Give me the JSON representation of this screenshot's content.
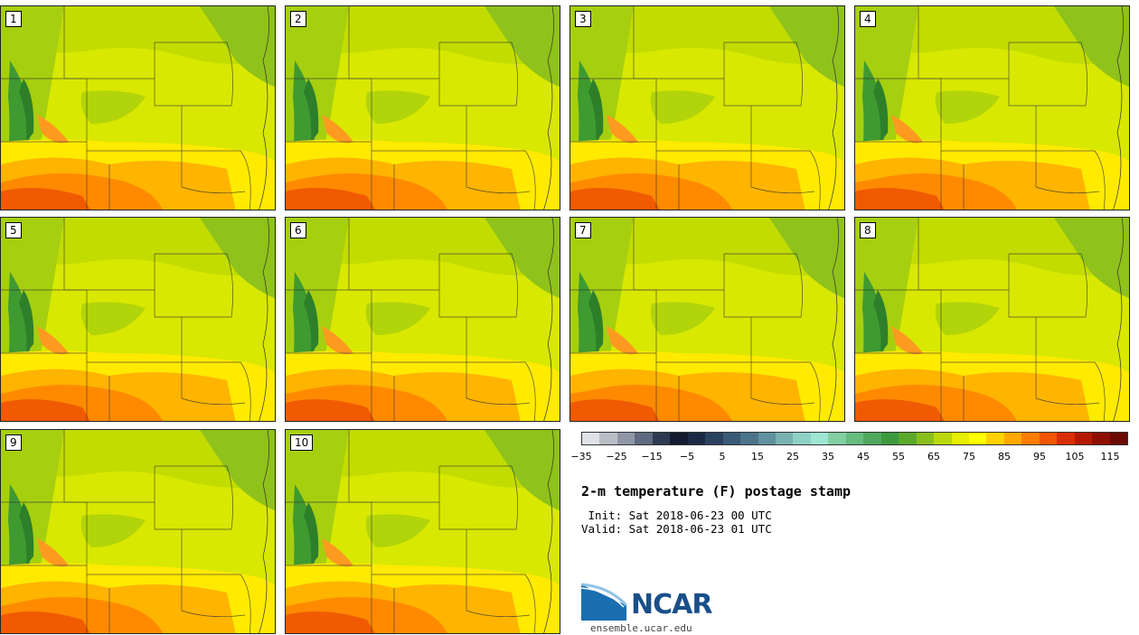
{
  "panels": [
    {
      "label": "1"
    },
    {
      "label": "2"
    },
    {
      "label": "3"
    },
    {
      "label": "4"
    },
    {
      "label": "5"
    },
    {
      "label": "6"
    },
    {
      "label": "7"
    },
    {
      "label": "8"
    },
    {
      "label": "9"
    },
    {
      "label": "10"
    }
  ],
  "colorbar": {
    "colors": [
      "#dfe2e6",
      "#b9bdc5",
      "#8f97a6",
      "#5f6a80",
      "#2e3a52",
      "#121b30",
      "#1b2a42",
      "#2a4260",
      "#3a5a78",
      "#4b7389",
      "#5f929e",
      "#79b1b2",
      "#8ed1c4",
      "#9fe6d2",
      "#82cfa2",
      "#66bb7f",
      "#4fa85e",
      "#3d9a3c",
      "#5aa92a",
      "#88bf1c",
      "#b9d90c",
      "#e6ef00",
      "#ffff00",
      "#ffd000",
      "#ffa800",
      "#ff7d00",
      "#f25500",
      "#d92e00",
      "#b51a00",
      "#8f1000",
      "#6b0a00"
    ],
    "ticks": [
      "−35",
      "−25",
      "−15",
      "−5",
      "5",
      "15",
      "25",
      "35",
      "45",
      "55",
      "65",
      "75",
      "85",
      "95",
      "105",
      "115"
    ]
  },
  "title": "2-m temperature (F) postage stamp",
  "init_line": " Init: Sat 2018-06-23 00 UTC",
  "valid_line": "Valid: Sat 2018-06-23 01 UTC",
  "logo": {
    "text": "NCAR",
    "url": "ensemble.ucar.edu"
  }
}
